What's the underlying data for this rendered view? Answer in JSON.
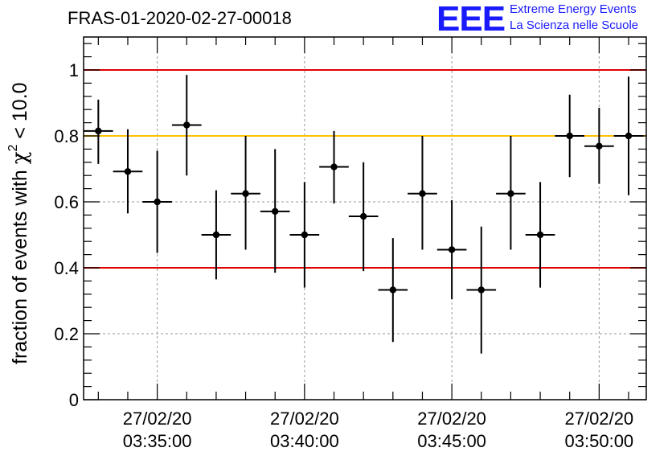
{
  "header": {
    "run_title": "FRAS-01-2020-02-27-00018",
    "logo_mark": "EEE",
    "logo_line1": "Extreme Energy Events",
    "logo_line2": "La Scienza nelle Scuole"
  },
  "colors": {
    "points": "#000000",
    "red_lines": "#e00000",
    "orange_line": "#ffc000",
    "grid": "#999999",
    "logo": "#1a1aff"
  },
  "chart_data": {
    "type": "scatter",
    "title": "FRAS-01-2020-02-27-00018",
    "xlabel": "",
    "ylabel_prefix": "fraction of events with ",
    "ylabel_symbol": "χ",
    "ylabel_sup": "2",
    "ylabel_suffix": " < 10.0",
    "x_unit": "minutes after 03:30:00 on 27/02/20",
    "xlim": [
      32.5,
      51.6
    ],
    "ylim": [
      0,
      1.1
    ],
    "yticks": [
      {
        "value": 0,
        "label": "0"
      },
      {
        "value": 0.2,
        "label": "0.2"
      },
      {
        "value": 0.4,
        "label": "0.4"
      },
      {
        "value": 0.6,
        "label": "0.6"
      },
      {
        "value": 0.8,
        "label": "0.8"
      },
      {
        "value": 1,
        "label": "1"
      }
    ],
    "xticks": [
      {
        "value": 35,
        "date": "27/02/20",
        "time": "03:35:00"
      },
      {
        "value": 40,
        "date": "27/02/20",
        "time": "03:40:00"
      },
      {
        "value": 45,
        "date": "27/02/20",
        "time": "03:45:00"
      },
      {
        "value": 50,
        "date": "27/02/20",
        "time": "03:50:00"
      }
    ],
    "grid": true,
    "reference_lines": [
      {
        "y": 1.0,
        "color": "red"
      },
      {
        "y": 0.8,
        "color": "orange"
      },
      {
        "y": 0.4,
        "color": "red"
      }
    ],
    "points": [
      {
        "x": 33.0,
        "y": 0.815,
        "y_low": 0.715,
        "y_high": 0.91
      },
      {
        "x": 34.0,
        "y": 0.692,
        "y_low": 0.565,
        "y_high": 0.82
      },
      {
        "x": 35.0,
        "y": 0.6,
        "y_low": 0.445,
        "y_high": 0.755
      },
      {
        "x": 36.0,
        "y": 0.833,
        "y_low": 0.68,
        "y_high": 0.985
      },
      {
        "x": 37.0,
        "y": 0.5,
        "y_low": 0.365,
        "y_high": 0.635
      },
      {
        "x": 38.0,
        "y": 0.625,
        "y_low": 0.455,
        "y_high": 0.8
      },
      {
        "x": 39.0,
        "y": 0.571,
        "y_low": 0.385,
        "y_high": 0.76
      },
      {
        "x": 40.0,
        "y": 0.5,
        "y_low": 0.34,
        "y_high": 0.66
      },
      {
        "x": 41.0,
        "y": 0.706,
        "y_low": 0.595,
        "y_high": 0.815
      },
      {
        "x": 42.0,
        "y": 0.556,
        "y_low": 0.39,
        "y_high": 0.72
      },
      {
        "x": 43.0,
        "y": 0.333,
        "y_low": 0.175,
        "y_high": 0.49
      },
      {
        "x": 44.0,
        "y": 0.625,
        "y_low": 0.455,
        "y_high": 0.8
      },
      {
        "x": 45.0,
        "y": 0.455,
        "y_low": 0.305,
        "y_high": 0.605
      },
      {
        "x": 46.0,
        "y": 0.333,
        "y_low": 0.14,
        "y_high": 0.525
      },
      {
        "x": 47.0,
        "y": 0.625,
        "y_low": 0.455,
        "y_high": 0.8
      },
      {
        "x": 48.0,
        "y": 0.5,
        "y_low": 0.34,
        "y_high": 0.66
      },
      {
        "x": 49.0,
        "y": 0.8,
        "y_low": 0.675,
        "y_high": 0.925
      },
      {
        "x": 50.0,
        "y": 0.769,
        "y_low": 0.655,
        "y_high": 0.885
      },
      {
        "x": 51.0,
        "y": 0.8,
        "y_low": 0.62,
        "y_high": 0.98
      }
    ],
    "bin_width": 1.0
  }
}
